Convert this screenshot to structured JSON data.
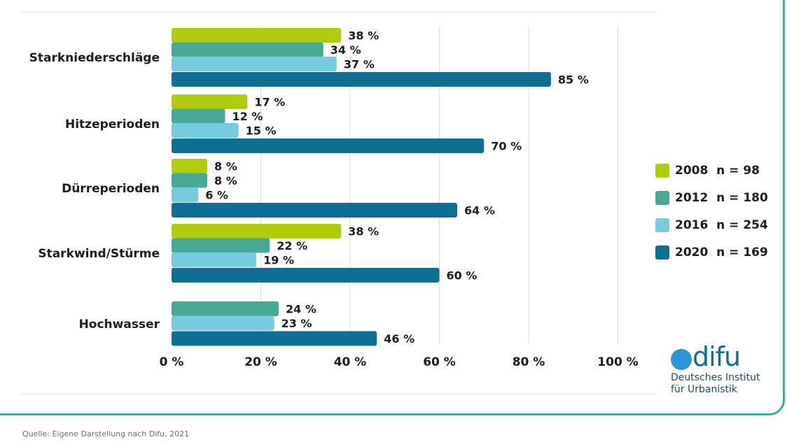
{
  "chart_data": {
    "type": "bar",
    "orientation": "horizontal",
    "categories": [
      "Starkniederschläge",
      "Hitzeperioden",
      "Dürreperioden",
      "Starkwind/Stürme",
      "Hochwasser"
    ],
    "series": [
      {
        "name": "2008  n = 98",
        "color": "#b1cb0d",
        "values": [
          38,
          17,
          8,
          38,
          null
        ]
      },
      {
        "name": "2012  n = 180",
        "color": "#48a996",
        "values": [
          34,
          12,
          8,
          22,
          24
        ]
      },
      {
        "name": "2016  n = 254",
        "color": "#78cadf",
        "values": [
          37,
          15,
          6,
          19,
          23
        ]
      },
      {
        "name": "2020  n = 169",
        "color": "#0e6e93",
        "values": [
          85,
          70,
          64,
          60,
          46
        ]
      }
    ],
    "value_suffix": " %",
    "xlim": [
      0,
      100
    ],
    "xticks": [
      0,
      20,
      40,
      60,
      80,
      100
    ],
    "xtick_labels": [
      "0 %",
      "20 %",
      "40 %",
      "60 %",
      "80 %",
      "100 %"
    ],
    "grid": true,
    "legend_position": "right"
  },
  "logo": {
    "mark": "difu",
    "line1": "Deutsches Institut",
    "line2": "für Urbanistik"
  },
  "source": "Quelle: Eigene Darstellung nach Difu, 2021"
}
